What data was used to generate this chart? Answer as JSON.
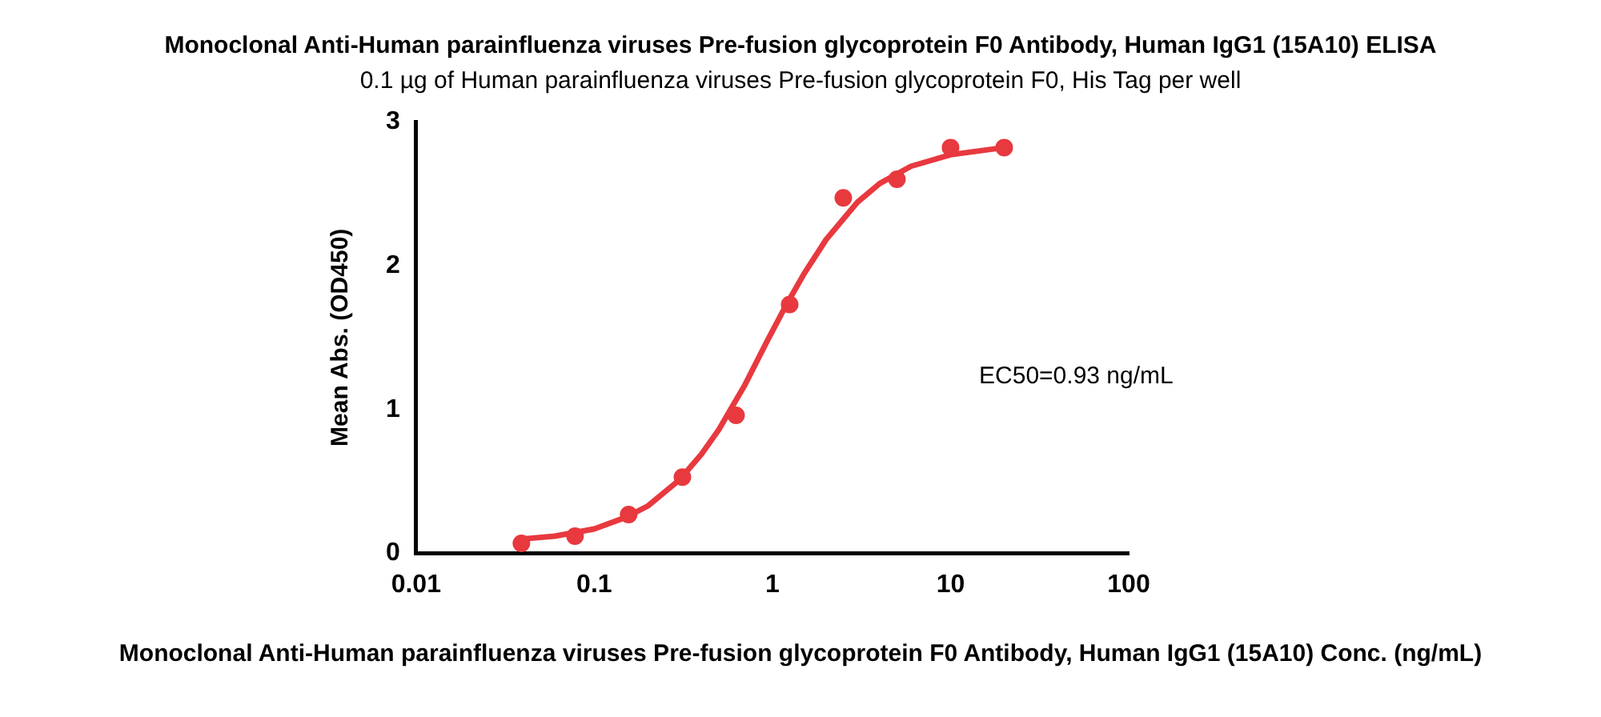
{
  "chart_data": {
    "type": "scatter",
    "title": "Monoclonal Anti-Human parainfluenza viruses Pre-fusion glycoprotein F0 Antibody, Human IgG1 (15A10) ELISA",
    "subtitle": "0.1 µg of Human parainfluenza viruses Pre-fusion glycoprotein F0, His Tag per well",
    "xlabel": "Monoclonal Anti-Human parainfluenza viruses Pre-fusion glycoprotein F0 Antibody, Human IgG1 (15A10) Conc. (ng/mL)",
    "ylabel": "Mean Abs. (OD450)",
    "annotations": [
      "EC50=0.93 ng/mL"
    ],
    "log": "x",
    "grid": false,
    "legend": false,
    "xlim": [
      0.01,
      100
    ],
    "xticks": [
      0.01,
      0.1,
      1,
      10,
      100
    ],
    "ylim": [
      0,
      3
    ],
    "yticks": [
      0,
      1,
      2,
      3
    ],
    "series": [
      {
        "type": "scatter",
        "color": "#e8393f",
        "marker": "circle",
        "x": [
          0.039,
          0.078,
          0.156,
          0.3125,
          0.625,
          1.25,
          2.5,
          5,
          10,
          20
        ],
        "values": [
          0.07,
          0.12,
          0.27,
          0.53,
          0.96,
          1.73,
          2.47,
          2.6,
          2.82,
          2.82
        ]
      },
      {
        "type": "line",
        "color": "#e8393f",
        "marker": "none",
        "line_style": "solid",
        "x": [
          0.039,
          0.06,
          0.1,
          0.15,
          0.2,
          0.3,
          0.4,
          0.5,
          0.7,
          0.93,
          1.2,
          1.5,
          2,
          3,
          4,
          6,
          10,
          20
        ],
        "values": [
          0.1,
          0.12,
          0.17,
          0.25,
          0.33,
          0.51,
          0.69,
          0.86,
          1.17,
          1.47,
          1.73,
          1.94,
          2.18,
          2.44,
          2.57,
          2.69,
          2.77,
          2.82
        ]
      }
    ]
  }
}
